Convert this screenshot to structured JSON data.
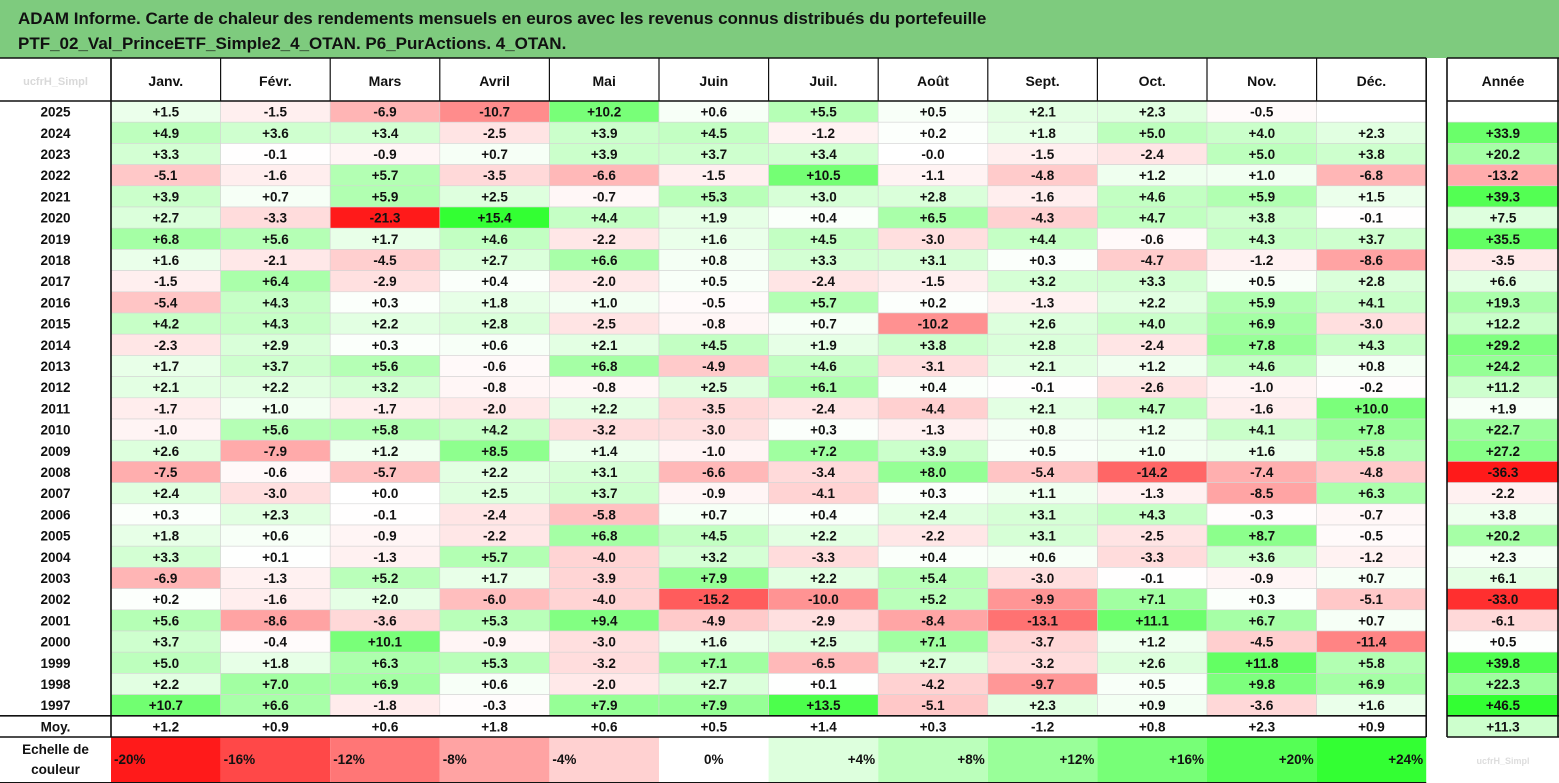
{
  "title": {
    "line1": "ADAM Informe. Carte de chaleur des rendements mensuels en euros avec les revenus connus distribués du portefeuille",
    "line2": "PTF_02_Val_PrinceETF_Simple2_4_OTAN. P6_PurActions. 4_OTAN."
  },
  "chart_data": {
    "type": "heatmap",
    "months": [
      "Janv.",
      "Févr.",
      "Mars",
      "Avril",
      "Mai",
      "Juin",
      "Juil.",
      "Août",
      "Sept.",
      "Oct.",
      "Nov.",
      "Déc."
    ],
    "year_header": "Année",
    "corner_label": "ucfrH_Simpl",
    "rows": [
      {
        "year": "2025",
        "values": [
          1.5,
          -1.5,
          -6.9,
          -10.7,
          10.2,
          0.6,
          5.5,
          0.5,
          2.1,
          2.3,
          -0.5,
          null
        ],
        "annual": null
      },
      {
        "year": "2024",
        "values": [
          4.9,
          3.6,
          3.4,
          -2.5,
          3.9,
          4.5,
          -1.2,
          0.2,
          1.8,
          5.0,
          4.0,
          2.3
        ],
        "annual": 33.9
      },
      {
        "year": "2023",
        "values": [
          3.3,
          -0.1,
          -0.9,
          0.7,
          3.9,
          3.7,
          3.4,
          -0.0,
          -1.5,
          -2.4,
          5.0,
          3.8
        ],
        "annual": 20.2
      },
      {
        "year": "2022",
        "values": [
          -5.1,
          -1.6,
          5.7,
          -3.5,
          -6.6,
          -1.5,
          10.5,
          -1.1,
          -4.8,
          1.2,
          1.0,
          -6.8
        ],
        "annual": -13.2
      },
      {
        "year": "2021",
        "values": [
          3.9,
          0.7,
          5.9,
          2.5,
          -0.7,
          5.3,
          3.0,
          2.8,
          -1.6,
          4.6,
          5.9,
          1.5
        ],
        "annual": 39.3
      },
      {
        "year": "2020",
        "values": [
          2.7,
          -3.3,
          -21.3,
          15.4,
          4.4,
          1.9,
          0.4,
          6.5,
          -4.3,
          4.7,
          3.8,
          -0.1
        ],
        "annual": 7.5
      },
      {
        "year": "2019",
        "values": [
          6.8,
          5.6,
          1.7,
          4.6,
          -2.2,
          1.6,
          4.5,
          -3.0,
          4.4,
          -0.6,
          4.3,
          3.7
        ],
        "annual": 35.5
      },
      {
        "year": "2018",
        "values": [
          1.6,
          -2.1,
          -4.5,
          2.7,
          6.6,
          0.8,
          3.3,
          3.1,
          0.3,
          -4.7,
          -1.2,
          -8.6
        ],
        "annual": -3.5
      },
      {
        "year": "2017",
        "values": [
          -1.5,
          6.4,
          -2.9,
          0.4,
          -2.0,
          0.5,
          -2.4,
          -1.5,
          3.2,
          3.3,
          0.5,
          2.8
        ],
        "annual": 6.6
      },
      {
        "year": "2016",
        "values": [
          -5.4,
          4.3,
          0.3,
          1.8,
          1.0,
          -0.5,
          5.7,
          0.2,
          -1.3,
          2.2,
          5.9,
          4.1
        ],
        "annual": 19.3
      },
      {
        "year": "2015",
        "values": [
          4.2,
          4.3,
          2.2,
          2.8,
          -2.5,
          -0.8,
          0.7,
          -10.2,
          2.6,
          4.0,
          6.9,
          -3.0
        ],
        "annual": 12.2
      },
      {
        "year": "2014",
        "values": [
          -2.3,
          2.9,
          0.3,
          0.6,
          2.1,
          4.5,
          1.9,
          3.8,
          2.8,
          -2.4,
          7.8,
          4.3
        ],
        "annual": 29.2
      },
      {
        "year": "2013",
        "values": [
          1.7,
          3.7,
          5.6,
          -0.6,
          6.8,
          -4.9,
          4.6,
          -3.1,
          2.1,
          1.2,
          4.6,
          0.8
        ],
        "annual": 24.2
      },
      {
        "year": "2012",
        "values": [
          2.1,
          2.2,
          3.2,
          -0.8,
          -0.8,
          2.5,
          6.1,
          0.4,
          -0.1,
          -2.6,
          -1.0,
          -0.2
        ],
        "annual": 11.2
      },
      {
        "year": "2011",
        "values": [
          -1.7,
          1.0,
          -1.7,
          -2.0,
          2.2,
          -3.5,
          -2.4,
          -4.4,
          2.1,
          4.7,
          -1.6,
          10.0
        ],
        "annual": 1.9
      },
      {
        "year": "2010",
        "values": [
          -1.0,
          5.6,
          5.8,
          4.2,
          -3.2,
          -3.0,
          0.3,
          -1.3,
          0.8,
          1.2,
          4.1,
          7.8
        ],
        "annual": 22.7
      },
      {
        "year": "2009",
        "values": [
          2.6,
          -7.9,
          1.2,
          8.5,
          1.4,
          -1.0,
          7.2,
          3.9,
          0.5,
          1.0,
          1.6,
          5.8
        ],
        "annual": 27.2
      },
      {
        "year": "2008",
        "values": [
          -7.5,
          -0.6,
          -5.7,
          2.2,
          3.1,
          -6.6,
          -3.4,
          8.0,
          -5.4,
          -14.2,
          -7.4,
          -4.8
        ],
        "annual": -36.3
      },
      {
        "year": "2007",
        "values": [
          2.4,
          -3.0,
          0.0,
          2.5,
          3.7,
          -0.9,
          -4.1,
          0.3,
          1.1,
          -1.3,
          -8.5,
          6.3
        ],
        "annual": -2.2
      },
      {
        "year": "2006",
        "values": [
          0.3,
          2.3,
          -0.1,
          -2.4,
          -5.8,
          0.7,
          0.4,
          2.4,
          3.1,
          4.3,
          -0.3,
          -0.7
        ],
        "annual": 3.8
      },
      {
        "year": "2005",
        "values": [
          1.8,
          0.6,
          -0.9,
          -2.2,
          6.8,
          4.5,
          2.2,
          -2.2,
          3.1,
          -2.5,
          8.7,
          -0.5
        ],
        "annual": 20.2
      },
      {
        "year": "2004",
        "values": [
          3.3,
          0.1,
          -1.3,
          5.7,
          -4.0,
          3.2,
          -3.3,
          0.4,
          0.6,
          -3.3,
          3.6,
          -1.2
        ],
        "annual": 2.3
      },
      {
        "year": "2003",
        "values": [
          -6.9,
          -1.3,
          5.2,
          1.7,
          -3.9,
          7.9,
          2.2,
          5.4,
          -3.0,
          -0.1,
          -0.9,
          0.7
        ],
        "annual": 6.1
      },
      {
        "year": "2002",
        "values": [
          0.2,
          -1.6,
          2.0,
          -6.0,
          -4.0,
          -15.2,
          -10.0,
          5.2,
          -9.9,
          7.1,
          0.3,
          -5.1
        ],
        "annual": -33.0
      },
      {
        "year": "2001",
        "values": [
          5.6,
          -8.6,
          -3.6,
          5.3,
          9.4,
          -4.9,
          -2.9,
          -8.4,
          -13.1,
          11.1,
          6.7,
          0.7
        ],
        "annual": -6.1
      },
      {
        "year": "2000",
        "values": [
          3.7,
          -0.4,
          10.1,
          -0.9,
          -3.0,
          1.6,
          2.5,
          7.1,
          -3.7,
          1.2,
          -4.5,
          -11.4
        ],
        "annual": 0.5
      },
      {
        "year": "1999",
        "values": [
          5.0,
          1.8,
          6.3,
          5.3,
          -3.2,
          7.1,
          -6.5,
          2.7,
          -3.2,
          2.6,
          11.8,
          5.8
        ],
        "annual": 39.8
      },
      {
        "year": "1998",
        "values": [
          2.2,
          7.0,
          6.9,
          0.6,
          -2.0,
          2.7,
          0.1,
          -4.2,
          -9.7,
          0.5,
          9.8,
          6.9
        ],
        "annual": 22.3
      },
      {
        "year": "1997",
        "values": [
          10.7,
          6.6,
          -1.8,
          -0.3,
          7.9,
          7.9,
          13.5,
          -5.1,
          2.3,
          0.9,
          -3.6,
          1.6
        ],
        "annual": 46.5
      }
    ],
    "mean_row": {
      "label": "Moy.",
      "values": [
        1.2,
        0.9,
        0.6,
        1.8,
        0.6,
        0.5,
        1.4,
        0.3,
        -1.2,
        0.8,
        2.3,
        0.9
      ],
      "annual": 11.3
    },
    "scale": {
      "label_line1": "Echelle de",
      "label_line2": "couleur",
      "stops": [
        -20,
        -16,
        -12,
        -8,
        -4,
        0,
        4,
        8,
        12,
        16,
        20,
        24
      ],
      "stop_labels": [
        "-20%",
        "-16%",
        "-12%",
        "-8%",
        "-4%",
        "0%",
        "+4%",
        "+8%",
        "+12%",
        "+16%",
        "+20%",
        "+24%"
      ],
      "tail_label": "ucfrH_Simpl"
    }
  }
}
